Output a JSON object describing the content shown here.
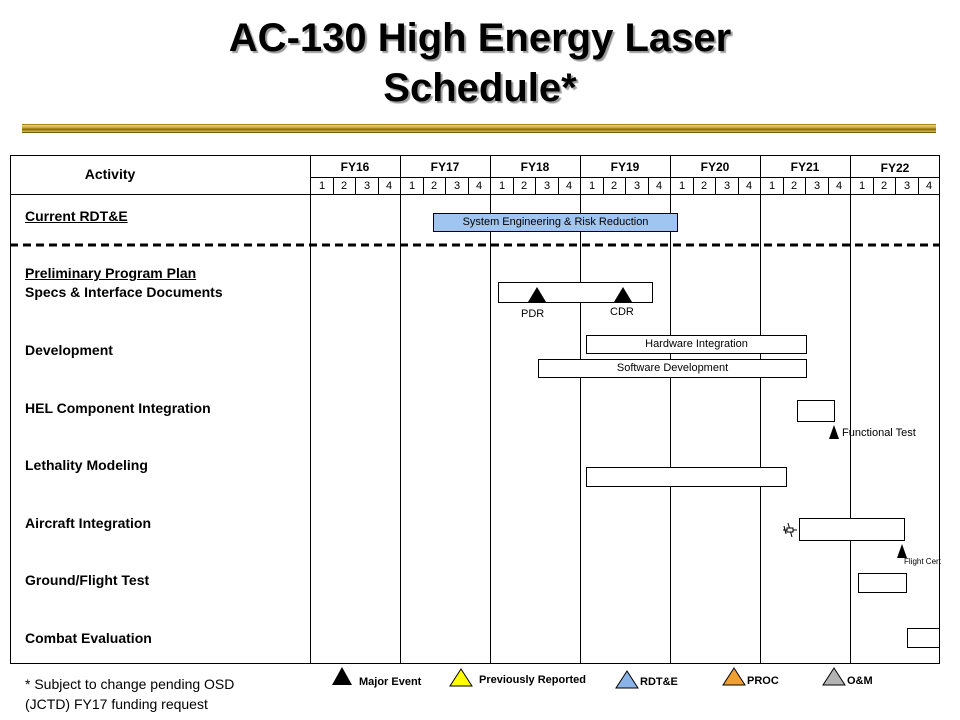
{
  "title": {
    "line1": "AC-130 High Energy Laser",
    "line2": "Schedule*"
  },
  "header": {
    "activity": "Activity",
    "fiscal_years": [
      "FY16",
      "FY17",
      "FY18",
      "FY19",
      "FY20",
      "FY21",
      "FY22"
    ],
    "quarters": [
      "1",
      "2",
      "3",
      "4"
    ]
  },
  "rows": {
    "current_rdte": "Current RDT&E",
    "preliminary_plan": "Preliminary Program Plan",
    "specs": "Specs & Interface Documents",
    "development": "Development",
    "hel_integration": "HEL Component Integration",
    "lethality": "Lethality Modeling",
    "aircraft_integration": "Aircraft Integration",
    "ground_flight_test": "Ground/Flight Test",
    "combat_evaluation": "Combat Evaluation"
  },
  "bars": {
    "system_engineering": "System  Engineering & Risk Reduction",
    "hardware_integration": "Hardware Integration",
    "software_development": "Software Development"
  },
  "milestones": {
    "pdr": "PDR",
    "cdr": "CDR",
    "functional_test": "Functional Test",
    "flight_cert": "Flight Cert"
  },
  "footnote": {
    "line1": "* Subject to change pending OSD",
    "line2": "(JCTD) FY17 funding request"
  },
  "legend": {
    "major_event": "Major Event",
    "previously_reported": "Previously  Reported",
    "rdte": "RDT&E",
    "proc": "PROC",
    "om": "O&M"
  },
  "colors": {
    "rdte_bar": "#9fc5f0",
    "previously_reported": "#ffff00",
    "rdte": "#8ab4e8",
    "proc": "#f0a030",
    "om": "#b4b4b4"
  }
}
